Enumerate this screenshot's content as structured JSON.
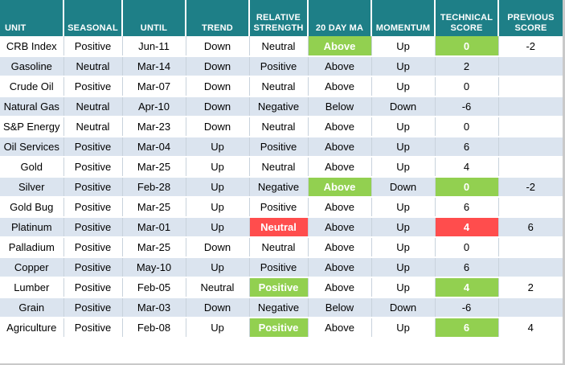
{
  "headers": [
    "UNIT",
    "SEASONAL",
    "UNTIL",
    "TREND",
    "RELATIVE STRENGTH",
    "20 DAY MA",
    "MOMENTUM",
    "TECHNICAL SCORE",
    "PREVIOUS SCORE"
  ],
  "rows": [
    {
      "cells": [
        "CRB Index",
        "Positive",
        "Jun-11",
        "Down",
        "Neutral",
        "Above",
        "Up",
        "0",
        "-2"
      ],
      "highlights": [
        null,
        null,
        null,
        null,
        null,
        "green",
        null,
        "green",
        null
      ]
    },
    {
      "cells": [
        "Gasoline",
        "Neutral",
        "Mar-14",
        "Down",
        "Positive",
        "Above",
        "Up",
        "2",
        ""
      ],
      "highlights": [
        null,
        null,
        null,
        null,
        null,
        null,
        null,
        null,
        null
      ]
    },
    {
      "cells": [
        "Crude Oil",
        "Positive",
        "Mar-07",
        "Down",
        "Neutral",
        "Above",
        "Up",
        "0",
        ""
      ],
      "highlights": [
        null,
        null,
        null,
        null,
        null,
        null,
        null,
        null,
        null
      ]
    },
    {
      "cells": [
        "Natural Gas",
        "Neutral",
        "Apr-10",
        "Down",
        "Negative",
        "Below",
        "Down",
        "-6",
        ""
      ],
      "highlights": [
        null,
        null,
        null,
        null,
        null,
        null,
        null,
        null,
        null
      ]
    },
    {
      "cells": [
        "S&P Energy",
        "Neutral",
        "Mar-23",
        "Down",
        "Neutral",
        "Above",
        "Up",
        "0",
        ""
      ],
      "highlights": [
        null,
        null,
        null,
        null,
        null,
        null,
        null,
        null,
        null
      ]
    },
    {
      "cells": [
        "Oil Services",
        "Positive",
        "Mar-04",
        "Up",
        "Positive",
        "Above",
        "Up",
        "6",
        ""
      ],
      "highlights": [
        null,
        null,
        null,
        null,
        null,
        null,
        null,
        null,
        null
      ]
    },
    {
      "cells": [
        "Gold",
        "Positive",
        "Mar-25",
        "Up",
        "Neutral",
        "Above",
        "Up",
        "4",
        ""
      ],
      "highlights": [
        null,
        null,
        null,
        null,
        null,
        null,
        null,
        null,
        null
      ]
    },
    {
      "cells": [
        "Silver",
        "Positive",
        "Feb-28",
        "Up",
        "Negative",
        "Above",
        "Down",
        "0",
        "-2"
      ],
      "highlights": [
        null,
        null,
        null,
        null,
        null,
        "green",
        null,
        "green",
        null
      ]
    },
    {
      "cells": [
        "Gold Bug",
        "Positive",
        "Mar-25",
        "Up",
        "Positive",
        "Above",
        "Up",
        "6",
        ""
      ],
      "highlights": [
        null,
        null,
        null,
        null,
        null,
        null,
        null,
        null,
        null
      ]
    },
    {
      "cells": [
        "Platinum",
        "Positive",
        "Mar-01",
        "Up",
        "Neutral",
        "Above",
        "Up",
        "4",
        "6"
      ],
      "highlights": [
        null,
        null,
        null,
        null,
        "red",
        null,
        null,
        "red",
        null
      ]
    },
    {
      "cells": [
        "Palladium",
        "Positive",
        "Mar-25",
        "Down",
        "Neutral",
        "Above",
        "Up",
        "0",
        ""
      ],
      "highlights": [
        null,
        null,
        null,
        null,
        null,
        null,
        null,
        null,
        null
      ]
    },
    {
      "cells": [
        "Copper",
        "Positive",
        "May-10",
        "Up",
        "Positive",
        "Above",
        "Up",
        "6",
        ""
      ],
      "highlights": [
        null,
        null,
        null,
        null,
        null,
        null,
        null,
        null,
        null
      ]
    },
    {
      "cells": [
        "Lumber",
        "Positive",
        "Feb-05",
        "Neutral",
        "Positive",
        "Above",
        "Up",
        "4",
        "2"
      ],
      "highlights": [
        null,
        null,
        null,
        null,
        "green",
        null,
        null,
        "green",
        null
      ]
    },
    {
      "cells": [
        "Grain",
        "Positive",
        "Mar-03",
        "Down",
        "Negative",
        "Below",
        "Down",
        "-6",
        ""
      ],
      "highlights": [
        null,
        null,
        null,
        null,
        null,
        null,
        null,
        null,
        null
      ]
    },
    {
      "cells": [
        "Agriculture",
        "Positive",
        "Feb-08",
        "Up",
        "Positive",
        "Above",
        "Up",
        "6",
        "4"
      ],
      "highlights": [
        null,
        null,
        null,
        null,
        "green",
        null,
        null,
        "green",
        null
      ]
    }
  ],
  "colors": {
    "header_bg": "#1e7f87",
    "alt_row": "#dbe4ef",
    "highlight_green": "#92d050",
    "highlight_red": "#ff4d4d"
  }
}
